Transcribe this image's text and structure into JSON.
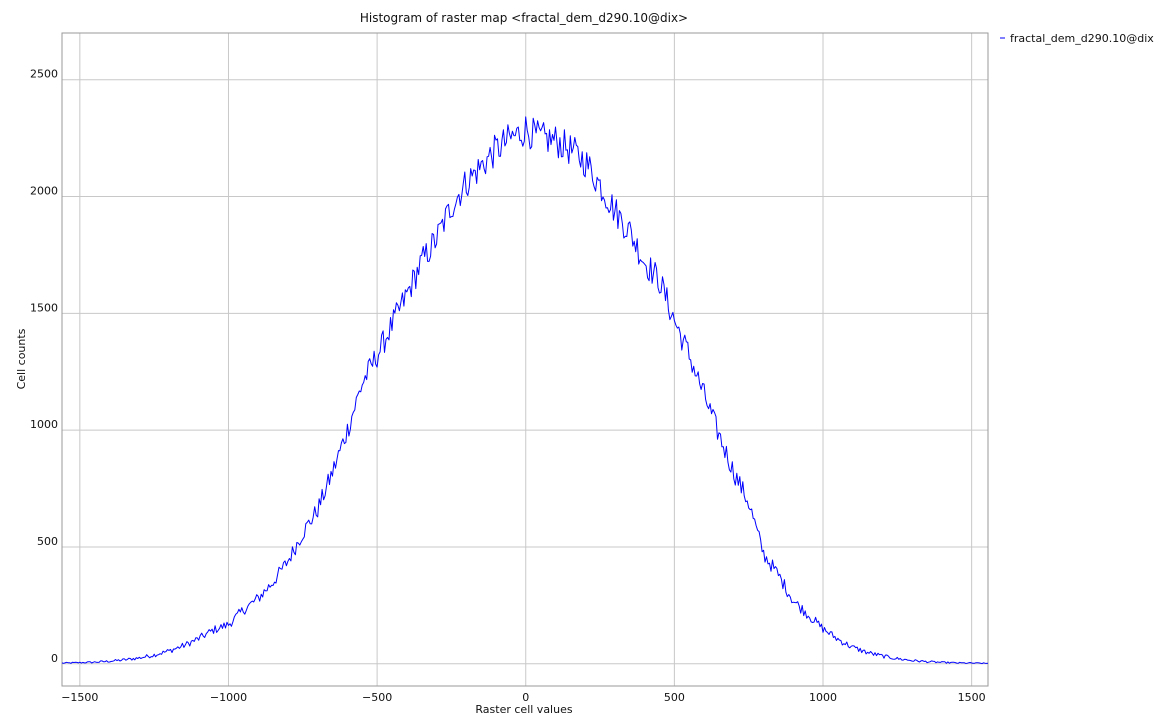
{
  "chart_data": {
    "type": "line",
    "title": "Histogram of raster map <fractal_dem_d290.10@dix>",
    "xlabel": "Raster cell values",
    "ylabel": "Cell counts",
    "xlim": [
      -1560,
      1555
    ],
    "ylim": [
      -95,
      2700
    ],
    "x_ticks": [
      -1500,
      -1000,
      -500,
      0,
      500,
      1000,
      1500
    ],
    "y_ticks": [
      0,
      500,
      1000,
      1500,
      2000,
      2500
    ],
    "x_tick_labels": [
      "−1500",
      "−1000",
      "−500",
      "0",
      "500",
      "1000",
      "1500"
    ],
    "y_tick_labels": [
      "0",
      "500",
      "1000",
      "1500",
      "2000",
      "2500"
    ],
    "grid": true,
    "legend": {
      "position": "top-right",
      "entries": [
        "fractal_dem_d290.10@dix"
      ]
    },
    "series": [
      {
        "name": "fractal_dem_d290.10@dix",
        "color": "#0000ff",
        "x": [
          -1560,
          -1500,
          -1450,
          -1400,
          -1350,
          -1300,
          -1250,
          -1200,
          -1150,
          -1100,
          -1050,
          -1000,
          -950,
          -900,
          -850,
          -800,
          -750,
          -700,
          -650,
          -600,
          -550,
          -500,
          -450,
          -400,
          -350,
          -300,
          -250,
          -200,
          -150,
          -100,
          -50,
          -20,
          0,
          20,
          50,
          100,
          150,
          200,
          250,
          300,
          350,
          400,
          450,
          500,
          550,
          600,
          650,
          700,
          750,
          800,
          850,
          900,
          950,
          1000,
          1050,
          1100,
          1150,
          1200,
          1250,
          1300,
          1350,
          1400,
          1450,
          1500,
          1555
        ],
        "y": [
          3,
          5,
          7,
          11,
          17,
          25,
          38,
          55,
          78,
          108,
          145,
          168,
          230,
          280,
          350,
          440,
          560,
          660,
          820,
          1000,
          1200,
          1320,
          1450,
          1580,
          1720,
          1820,
          1960,
          2060,
          2130,
          2200,
          2250,
          2270,
          2290,
          2270,
          2250,
          2240,
          2200,
          2150,
          2050,
          1940,
          1850,
          1720,
          1640,
          1470,
          1320,
          1150,
          980,
          820,
          690,
          470,
          380,
          270,
          210,
          150,
          105,
          70,
          48,
          33,
          22,
          14,
          9,
          6,
          4,
          3,
          2
        ]
      }
    ]
  }
}
